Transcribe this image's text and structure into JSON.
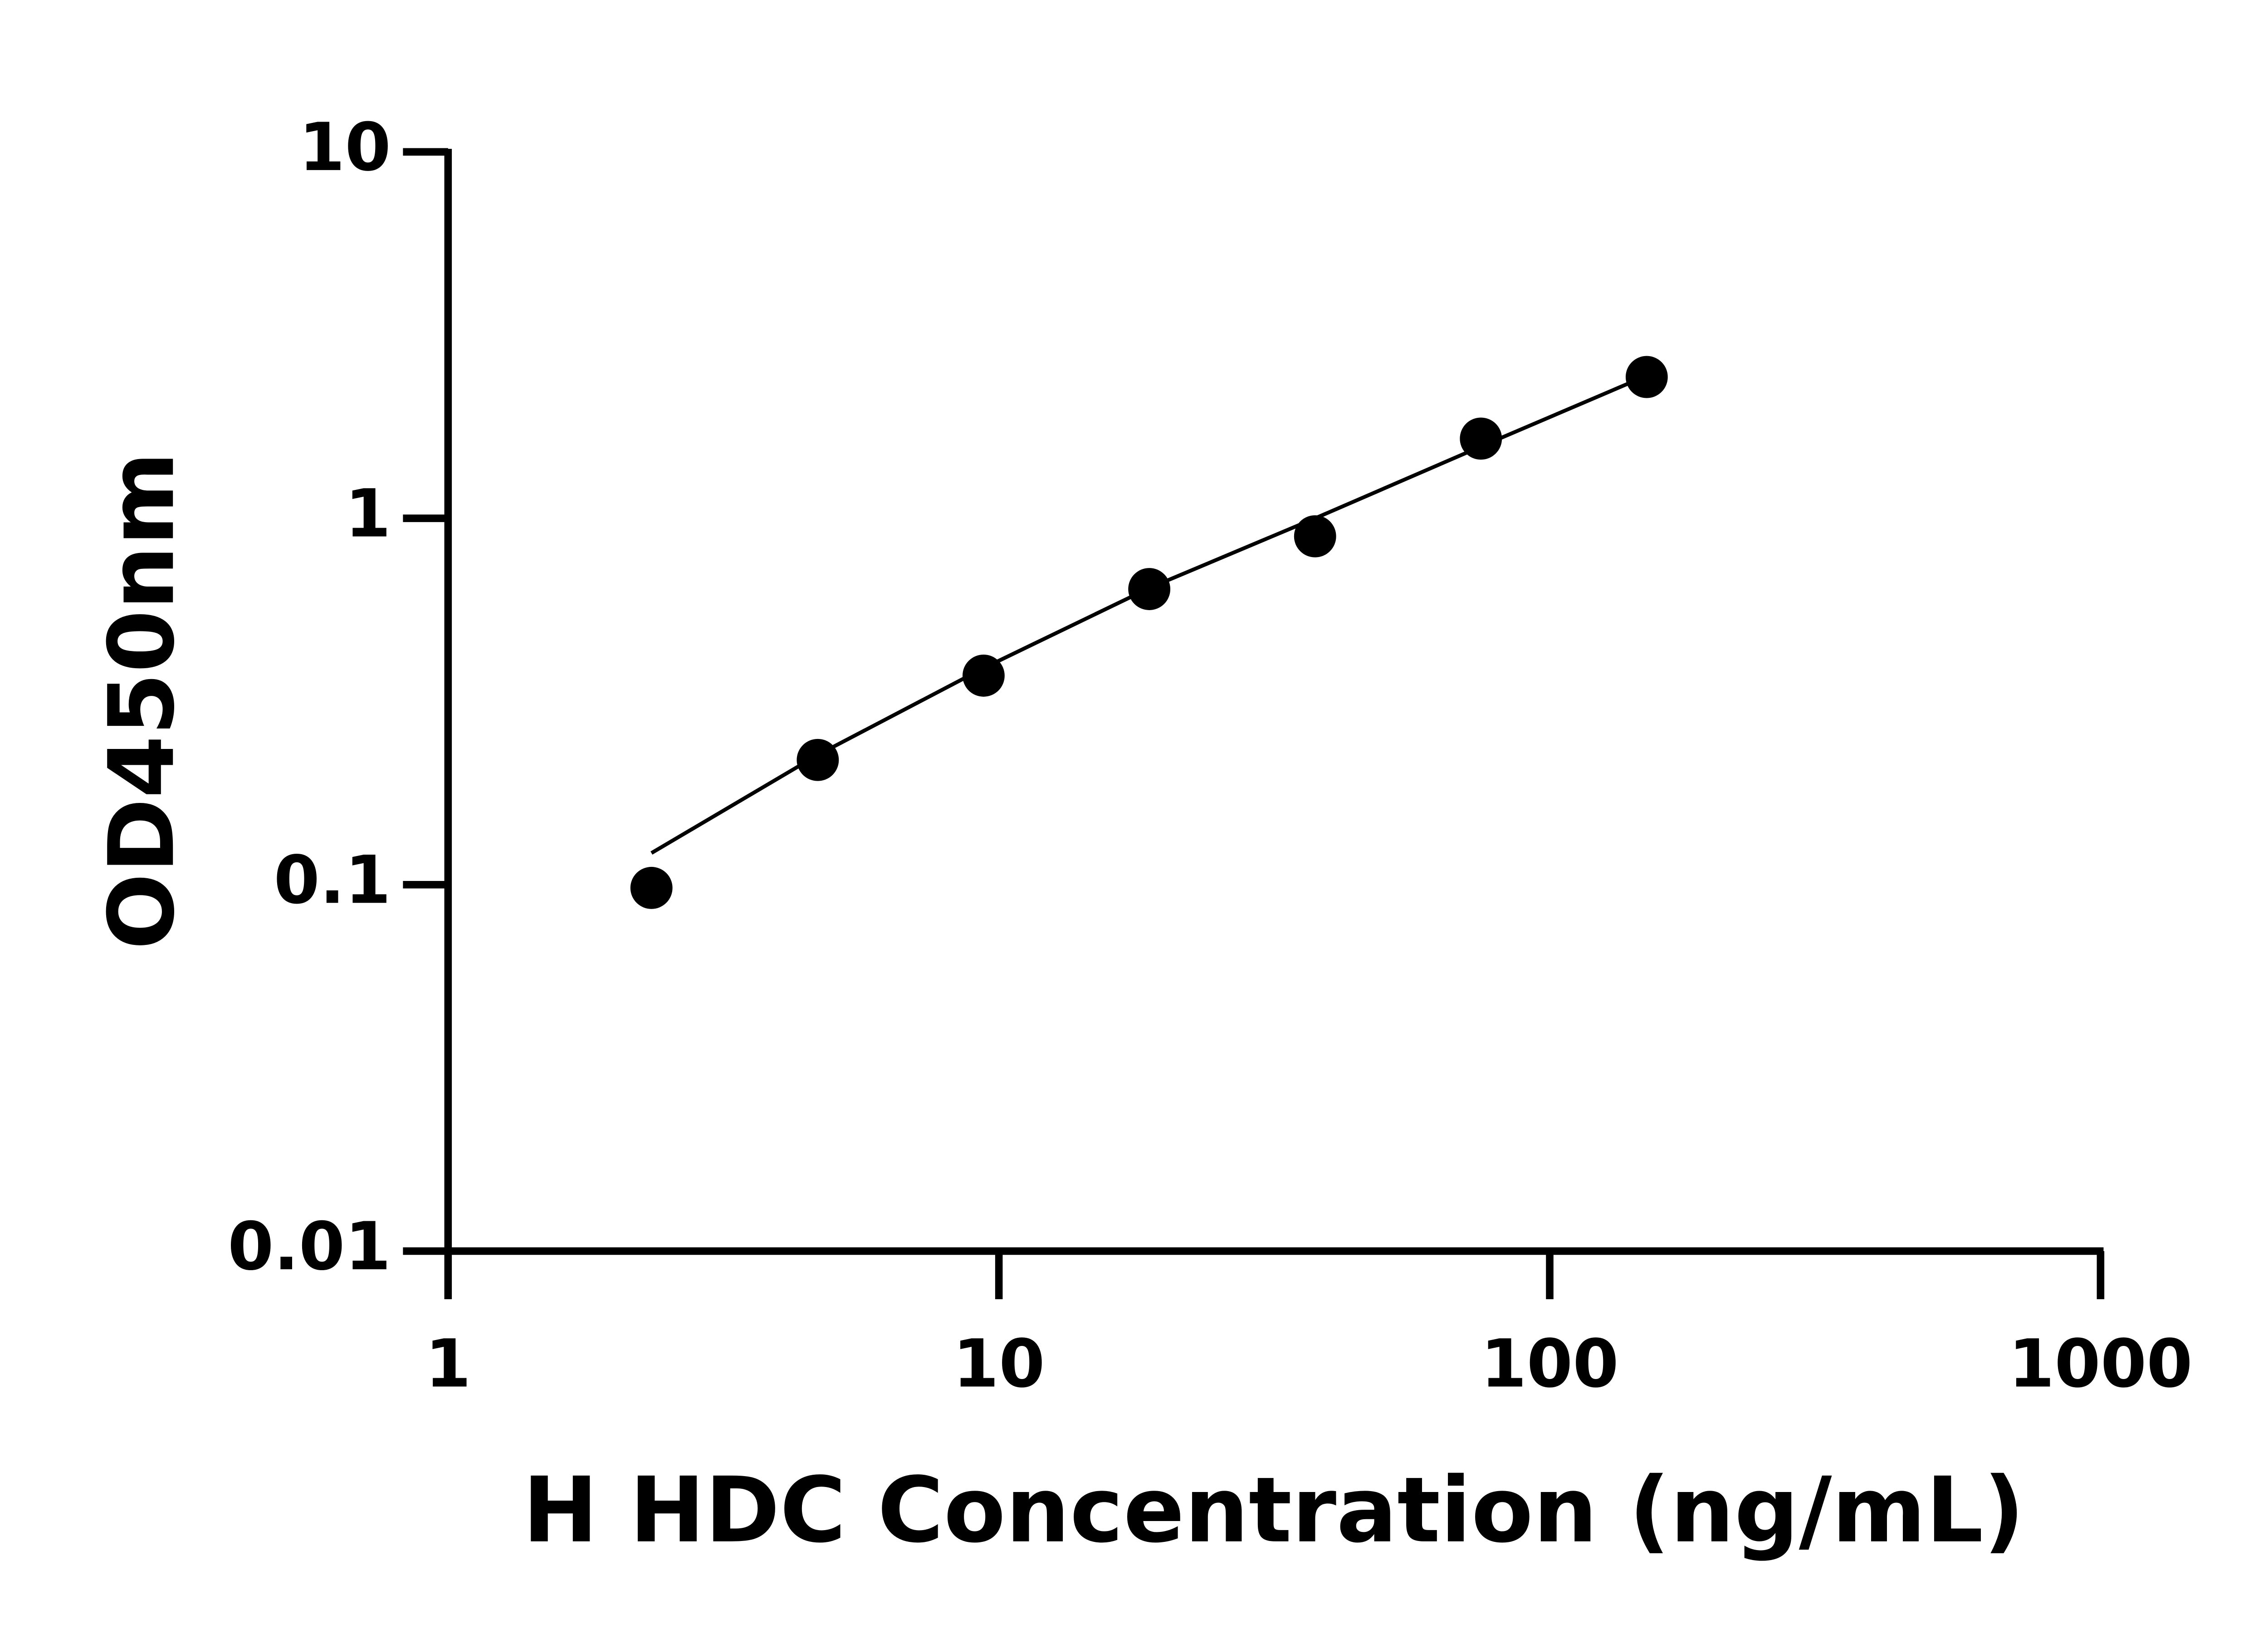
{
  "chart_data": {
    "type": "scatter",
    "x_label": "H HDC Concentration (ng/mL)",
    "y_label": "OD450nm",
    "x_scale": "log",
    "y_scale": "log",
    "xlim": [
      1,
      1000
    ],
    "xticks": [
      1,
      10,
      100,
      1000
    ],
    "ylim": [
      0.01,
      10
    ],
    "yticks": [
      0.01,
      0.1,
      1,
      10
    ],
    "series": [
      {
        "mode": "markers",
        "color": "#000000",
        "x": [
          2.34,
          4.69,
          9.38,
          18.75,
          37.5,
          75,
          150
        ],
        "values": [
          0.098,
          0.219,
          0.372,
          0.641,
          0.893,
          1.65,
          2.43
        ]
      },
      {
        "mode": "line",
        "color": "#000000",
        "x": [
          2.34,
          4.69,
          9.38,
          18.75,
          37.5,
          75,
          150
        ],
        "values": [
          0.122,
          0.226,
          0.39,
          0.645,
          1.0,
          1.57,
          2.45
        ]
      }
    ]
  }
}
